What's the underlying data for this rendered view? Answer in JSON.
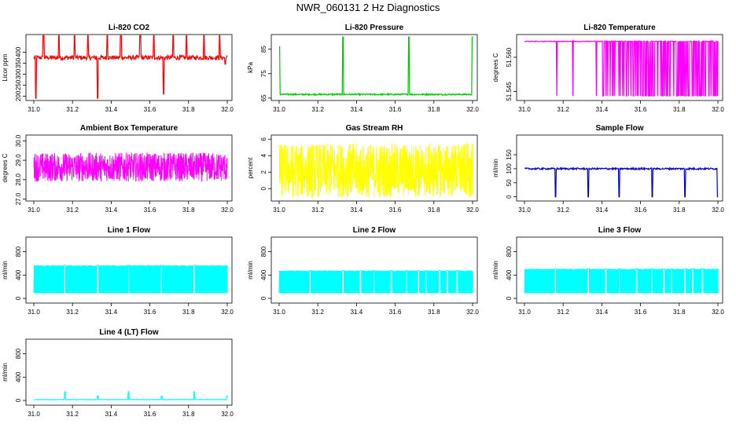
{
  "title": "NWR_060131  2 Hz Diagnostics",
  "chart_data": [
    {
      "id": "co2",
      "type": "line",
      "title": "Li-820 CO2",
      "ylabel": "Licor ppm",
      "color": "#ff0000",
      "x": [
        31.0,
        32.0
      ],
      "xticks": [
        "31.0",
        "31.2",
        "31.4",
        "31.6",
        "31.8",
        "32.0"
      ],
      "xlim": [
        31.0,
        32.0
      ],
      "ylim": [
        180,
        480
      ],
      "yticks": [
        "200",
        "250",
        "300",
        "350",
        "400"
      ],
      "ytick_values": [
        200,
        250,
        300,
        350,
        400
      ],
      "series": {
        "baseline": 375,
        "noise": 10,
        "spikes_up": [
          {
            "x": 31.05,
            "y": 475
          },
          {
            "x": 31.13,
            "y": 475
          },
          {
            "x": 31.21,
            "y": 475
          },
          {
            "x": 31.28,
            "y": 475
          },
          {
            "x": 31.38,
            "y": 475
          },
          {
            "x": 31.45,
            "y": 475
          },
          {
            "x": 31.55,
            "y": 475
          },
          {
            "x": 31.62,
            "y": 475
          },
          {
            "x": 31.72,
            "y": 475
          },
          {
            "x": 31.79,
            "y": 475
          },
          {
            "x": 31.88,
            "y": 475
          },
          {
            "x": 31.96,
            "y": 475
          }
        ],
        "spikes_down": [
          {
            "x": 31.01,
            "y": 190
          },
          {
            "x": 31.33,
            "y": 190
          },
          {
            "x": 31.67,
            "y": 210
          },
          {
            "x": 31.99,
            "y": 345
          }
        ]
      }
    },
    {
      "id": "pressure",
      "type": "line",
      "title": "Li-820 Pressure",
      "ylabel": "kPa",
      "color": "#00cc00",
      "xlim": [
        31.0,
        32.0
      ],
      "xticks": [
        "31.0",
        "31.2",
        "31.4",
        "31.6",
        "31.8",
        "32.0"
      ],
      "ylim": [
        64,
        91
      ],
      "yticks": [
        "65",
        "75",
        "85"
      ],
      "ytick_values": [
        65,
        75,
        85
      ],
      "series": {
        "baseline": 66.5,
        "noise": 0.3,
        "spikes_up": [
          {
            "x": 31.0,
            "y": 86
          },
          {
            "x": 31.33,
            "y": 90
          },
          {
            "x": 31.67,
            "y": 90
          },
          {
            "x": 32.0,
            "y": 90
          }
        ],
        "spikes_down": []
      }
    },
    {
      "id": "temp",
      "type": "line",
      "title": "Li-820 Temperature",
      "ylabel": "degrees C",
      "color": "#ff00ff",
      "xlim": [
        31.0,
        32.0
      ],
      "xticks": [
        "31.0",
        "31.2",
        "31.4",
        "31.6",
        "31.8",
        "32.0"
      ],
      "ylim": [
        51.541,
        51.57
      ],
      "yticks": [
        "51.545",
        "51.560"
      ],
      "ytick_values": [
        51.545,
        51.56
      ],
      "series": {
        "baseline": 51.567,
        "noise": 0.0003,
        "dropouts_to": 51.543
      }
    },
    {
      "id": "ambient",
      "type": "line",
      "title": "Ambient Box Temperature",
      "ylabel": "degrees C",
      "color": "#ff00ff",
      "xlim": [
        31.0,
        32.0
      ],
      "xticks": [
        "31.0",
        "31.2",
        "31.4",
        "31.6",
        "31.8",
        "32.0"
      ],
      "ylim": [
        26.9,
        30.3
      ],
      "yticks": [
        "27.0",
        "28.0",
        "29.0",
        "30.0"
      ],
      "ytick_values": [
        27,
        28,
        29,
        30
      ],
      "series": {
        "baseline": 28.65,
        "noise": 0.75
      }
    },
    {
      "id": "rh",
      "type": "line",
      "title": "Gas Stream RH",
      "ylabel": "percent",
      "color": "#ffff00",
      "xlim": [
        31.0,
        32.0
      ],
      "xticks": [
        "31.0",
        "31.2",
        "31.4",
        "31.6",
        "31.8",
        "32.0"
      ],
      "ylim": [
        -1.5,
        6.5
      ],
      "yticks": [
        "0",
        "2",
        "4",
        "6"
      ],
      "ytick_values": [
        0,
        2,
        4,
        6
      ],
      "series": {
        "baseline": 2.2,
        "noise": 3.3
      }
    },
    {
      "id": "sample",
      "type": "line",
      "title": "Sample Flow",
      "ylabel": "ml/min",
      "color": "#0000cc",
      "xlim": [
        31.0,
        32.0
      ],
      "xticks": [
        "31.0",
        "31.2",
        "31.4",
        "31.6",
        "31.8",
        "32.0"
      ],
      "ylim": [
        -15,
        220
      ],
      "yticks": [
        "0",
        "50",
        "100",
        "150"
      ],
      "ytick_values": [
        0,
        50,
        100,
        150
      ],
      "series": {
        "baseline": 100,
        "noise": 3,
        "spikes_down": [
          {
            "x": 31.16,
            "y": 0
          },
          {
            "x": 31.33,
            "y": 0
          },
          {
            "x": 31.49,
            "y": 0
          },
          {
            "x": 31.66,
            "y": 0
          },
          {
            "x": 31.83,
            "y": 0
          },
          {
            "x": 32.0,
            "y": 0
          }
        ]
      }
    },
    {
      "id": "line1",
      "type": "line",
      "title": "Line 1 Flow",
      "ylabel": "ml/min",
      "color": "#00ffff",
      "xlim": [
        31.0,
        32.0
      ],
      "xticks": [
        "31.0",
        "31.2",
        "31.4",
        "31.6",
        "31.8",
        "32.0"
      ],
      "ylim": [
        -80,
        1050
      ],
      "yticks": [
        "0",
        "400",
        "800"
      ],
      "ytick_values": [
        0,
        400,
        800
      ],
      "series": {
        "low": 90,
        "high": 570,
        "gaps": [
          31.16,
          31.33,
          31.49,
          31.66,
          31.83
        ]
      }
    },
    {
      "id": "line2",
      "type": "line",
      "title": "Line 2 Flow",
      "ylabel": "ml/min",
      "color": "#00ffff",
      "xlim": [
        31.0,
        32.0
      ],
      "xticks": [
        "31.0",
        "31.2",
        "31.4",
        "31.6",
        "31.8",
        "32.0"
      ],
      "ylim": [
        -80,
        1050
      ],
      "yticks": [
        "0",
        "400",
        "800"
      ],
      "ytick_values": [
        0,
        400,
        800
      ],
      "series": {
        "low": 90,
        "high": 480,
        "gaps": [
          31.16,
          31.33,
          31.42,
          31.49,
          31.58,
          31.66,
          31.72,
          31.76,
          31.83,
          31.87,
          31.92
        ]
      }
    },
    {
      "id": "line3",
      "type": "line",
      "title": "Line 3 Flow",
      "ylabel": "ml/min",
      "color": "#00ffff",
      "xlim": [
        31.0,
        32.0
      ],
      "xticks": [
        "31.0",
        "31.2",
        "31.4",
        "31.6",
        "31.8",
        "32.0"
      ],
      "ylim": [
        -80,
        1050
      ],
      "yticks": [
        "0",
        "400",
        "800"
      ],
      "ytick_values": [
        0,
        400,
        800
      ],
      "series": {
        "low": 90,
        "high": 510,
        "gaps": [
          31.16,
          31.33,
          31.42,
          31.49,
          31.58,
          31.66,
          31.72,
          31.76,
          31.83,
          31.87,
          31.92
        ]
      }
    },
    {
      "id": "line4",
      "type": "line",
      "title": "Line 4 (LT) Flow",
      "ylabel": "ml/min",
      "color": "#00ffff",
      "xlim": [
        31.0,
        32.0
      ],
      "xticks": [
        "31.0",
        "31.2",
        "31.4",
        "31.6",
        "31.8",
        "32.0"
      ],
      "ylim": [
        -80,
        1050
      ],
      "yticks": [
        "0",
        "400",
        "800"
      ],
      "ytick_values": [
        0,
        400,
        800
      ],
      "series": {
        "baseline": 15,
        "noise": 3,
        "spikes_up": [
          {
            "x": 31.16,
            "y": 150
          },
          {
            "x": 31.33,
            "y": 80
          },
          {
            "x": 31.49,
            "y": 150
          },
          {
            "x": 31.66,
            "y": 80
          },
          {
            "x": 31.83,
            "y": 150
          },
          {
            "x": 32.0,
            "y": 80
          }
        ]
      }
    }
  ]
}
